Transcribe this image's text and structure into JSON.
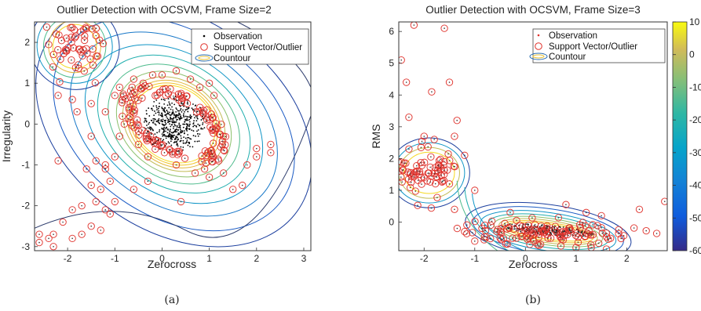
{
  "chart_data": [
    {
      "type": "scatter",
      "title": "Outlier Detection with OCSVM, Frame Size=2",
      "xlabel": "Zerocross",
      "ylabel": "Irregularity",
      "xlim": [
        -2.7,
        3.15
      ],
      "ylim": [
        -3.1,
        2.5
      ],
      "xticks": [
        "-2",
        "-1",
        "0",
        "1",
        "2",
        "3"
      ],
      "yticks": [
        "2",
        "1",
        "0",
        "-1",
        "-2",
        "-3"
      ],
      "legend": {
        "placement": "top-right",
        "entries": [
          "Observation",
          "Support Vector/Outlier",
          "Countour"
        ]
      },
      "caption": "(a)",
      "series": [
        {
          "name": "Observation",
          "marker": "dot",
          "color": "#000000",
          "cluster": {
            "center": [
              0.25,
              0.0
            ],
            "spread": [
              0.55,
              0.55
            ],
            "angle_deg": -35
          }
        },
        {
          "name": "Support Vector/Outlier",
          "marker": "circle",
          "color": "#e0302a",
          "points": [
            [
              -2.6,
              -2.7
            ],
            [
              -2.4,
              -2.8
            ],
            [
              -2.3,
              -2.7
            ],
            [
              -2.3,
              -3.0
            ],
            [
              -2.1,
              -2.4
            ],
            [
              -1.9,
              -2.8
            ],
            [
              -1.7,
              -2.7
            ],
            [
              -1.5,
              -2.5
            ],
            [
              -1.3,
              -2.6
            ],
            [
              -1.1,
              -2.2
            ],
            [
              -1.9,
              -2.1
            ],
            [
              -1.7,
              -2.0
            ],
            [
              -1.4,
              -1.9
            ],
            [
              -1.2,
              -2.1
            ],
            [
              -2.2,
              -0.9
            ],
            [
              -1.5,
              -1.5
            ],
            [
              -1.3,
              -1.6
            ],
            [
              -1.6,
              -1.1
            ],
            [
              -1.4,
              -0.9
            ],
            [
              -1.2,
              -1.0
            ],
            [
              -1.0,
              -0.8
            ],
            [
              -1.1,
              -1.4
            ],
            [
              -1.0,
              -1.9
            ],
            [
              -0.6,
              -1.6
            ],
            [
              -0.3,
              -1.4
            ],
            [
              0.4,
              -1.9
            ],
            [
              1.5,
              -1.6
            ],
            [
              1.7,
              -1.5
            ],
            [
              1.8,
              -1.0
            ],
            [
              2.0,
              -0.8
            ],
            [
              2.3,
              -0.5
            ],
            [
              2.0,
              -0.6
            ],
            [
              -0.9,
              -0.3
            ],
            [
              -1.5,
              -0.3
            ],
            [
              -1.8,
              0.3
            ],
            [
              -1.5,
              0.5
            ],
            [
              -1.2,
              0.3
            ],
            [
              -1.9,
              0.6
            ],
            [
              -2.2,
              0.7
            ],
            [
              -1.0,
              0.7
            ],
            [
              -0.9,
              0.9
            ],
            [
              -0.6,
              1.1
            ],
            [
              -0.4,
              1.0
            ],
            [
              -0.2,
              1.2
            ],
            [
              0.0,
              1.2
            ],
            [
              0.3,
              1.3
            ],
            [
              0.6,
              1.1
            ],
            [
              0.8,
              0.9
            ],
            [
              1.1,
              0.7
            ],
            [
              1.0,
              1.0
            ],
            [
              0.9,
              -1.1
            ],
            [
              0.7,
              -1.2
            ],
            [
              0.3,
              -1.0
            ],
            [
              -0.3,
              -0.8
            ],
            [
              -0.5,
              -0.5
            ],
            [
              1.2,
              -0.9
            ],
            [
              -2.6,
              -2.9
            ],
            [
              -0.7,
              0.4
            ],
            [
              -0.8,
              0.0
            ],
            [
              1.3,
              -1.2
            ],
            [
              2.3,
              -0.7
            ],
            [
              1.0,
              -1.3
            ],
            [
              1.3,
              -0.3
            ],
            [
              -1.2,
              -1.1
            ]
          ],
          "cluster_tl": {
            "center": [
              -1.85,
              1.95
            ],
            "spread": [
              0.28,
              0.35
            ],
            "count": 55
          },
          "ring": {
            "center": [
              0.25,
              0.0
            ],
            "radii": [
              1.05,
              0.95
            ],
            "angle_deg": -35,
            "count": 130
          }
        }
      ]
    },
    {
      "type": "scatter",
      "title": "Outlier Detection with OCSVM, Frame Size=3",
      "xlabel": "Zerocross",
      "ylabel": "RMS",
      "xlim": [
        -2.5,
        2.8
      ],
      "ylim": [
        -0.9,
        6.3
      ],
      "xticks": [
        "-2",
        "-1",
        "0",
        "1",
        "2"
      ],
      "yticks": [
        "6",
        "5",
        "4",
        "3",
        "2",
        "1",
        "0"
      ],
      "legend": {
        "placement": "top-right",
        "entries": [
          "Observation",
          "Support Vector/Outlier",
          "Countour"
        ]
      },
      "colorbar": {
        "range": [
          -60,
          10
        ],
        "ticks": [
          "10",
          "0",
          "-10",
          "-20",
          "-30",
          "-40",
          "-50",
          "-60"
        ]
      },
      "caption": "(b)",
      "series": [
        {
          "name": "Observation",
          "marker": "dot",
          "color": "#000000",
          "cluster": {
            "center": [
              0.4,
              -0.25
            ],
            "spread": [
              0.75,
              0.12
            ],
            "angle_deg": -8
          }
        },
        {
          "name": "Support Vector/Outlier",
          "marker": "circle",
          "color": "#e0302a",
          "points": [
            [
              -2.45,
              5.1
            ],
            [
              -2.35,
              4.4
            ],
            [
              -2.3,
              3.3
            ],
            [
              -2.2,
              6.2
            ],
            [
              -1.85,
              4.1
            ],
            [
              -1.6,
              6.1
            ],
            [
              -1.5,
              4.4
            ],
            [
              -1.35,
              3.2
            ],
            [
              -1.4,
              2.7
            ],
            [
              -1.6,
              1.9
            ],
            [
              -1.5,
              1.2
            ],
            [
              -1.2,
              2.1
            ],
            [
              -1.0,
              1.0
            ],
            [
              -1.4,
              0.4
            ],
            [
              -1.2,
              -0.3
            ],
            [
              -1.0,
              -0.6
            ],
            [
              -0.8,
              -0.1
            ],
            [
              -0.5,
              -0.5
            ],
            [
              0.3,
              -0.7
            ],
            [
              0.7,
              -0.75
            ],
            [
              1.0,
              -0.8
            ],
            [
              1.3,
              -0.8
            ],
            [
              1.6,
              -0.85
            ],
            [
              0.8,
              0.55
            ],
            [
              1.2,
              0.3
            ],
            [
              1.5,
              0.2
            ],
            [
              2.25,
              0.4
            ],
            [
              2.75,
              0.65
            ],
            [
              -0.3,
              0.3
            ],
            [
              -2.5,
              1.6
            ],
            [
              -2.3,
              2.3
            ],
            [
              -2.0,
              2.7
            ],
            [
              -1.8,
              2.6
            ]
          ],
          "cluster_l": {
            "center": [
              -1.95,
              1.55
            ],
            "spread": [
              0.28,
              0.35
            ],
            "count": 70
          },
          "cluster_r": {
            "center": [
              0.4,
              -0.3
            ],
            "spread": [
              0.75,
              0.2
            ],
            "count": 120
          }
        }
      ]
    }
  ]
}
